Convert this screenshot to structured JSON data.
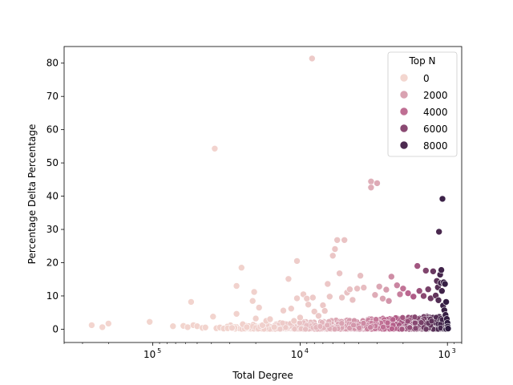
{
  "chart_data": {
    "type": "scatter",
    "title": "",
    "xlabel": "Total Degree",
    "ylabel": "Percentage Delta Percentage",
    "x_scale": "log",
    "x_reversed": true,
    "xlim": [
      800,
      400000
    ],
    "ylim": [
      -4,
      85
    ],
    "x_ticks": [
      {
        "value": 100000,
        "base": "10",
        "exp": "5"
      },
      {
        "value": 10000,
        "base": "10",
        "exp": "4"
      },
      {
        "value": 1000,
        "base": "10",
        "exp": "3"
      }
    ],
    "y_ticks": [
      0,
      10,
      20,
      30,
      40,
      50,
      60,
      70,
      80
    ],
    "grid": false,
    "legend": {
      "title": "Top N",
      "placement": "top-right",
      "entries": [
        {
          "label": "0",
          "value": 0
        },
        {
          "label": "2000",
          "value": 2000
        },
        {
          "label": "4000",
          "value": 4000
        },
        {
          "label": "6000",
          "value": 6000
        },
        {
          "label": "8000",
          "value": 8000
        }
      ]
    },
    "hue_range": [
      0,
      9000
    ],
    "palette_low": "#f3d6cf",
    "palette_high": "#2d1a3f",
    "points": [
      {
        "x": 260000,
        "y": 1.2,
        "n": 20
      },
      {
        "x": 220000,
        "y": 0.6,
        "n": 30
      },
      {
        "x": 200000,
        "y": 1.7,
        "n": 25
      },
      {
        "x": 105000,
        "y": 2.2,
        "n": 40
      },
      {
        "x": 73000,
        "y": 0.9,
        "n": 50
      },
      {
        "x": 62000,
        "y": 1.0,
        "n": 55
      },
      {
        "x": 58000,
        "y": 0.6,
        "n": 60
      },
      {
        "x": 55000,
        "y": 8.2,
        "n": 70
      },
      {
        "x": 53000,
        "y": 1.2,
        "n": 65
      },
      {
        "x": 50000,
        "y": 0.9,
        "n": 70
      },
      {
        "x": 46000,
        "y": 0.4,
        "n": 80
      },
      {
        "x": 44000,
        "y": 0.5,
        "n": 85
      },
      {
        "x": 38000,
        "y": 54.3,
        "n": 100
      },
      {
        "x": 39000,
        "y": 3.8,
        "n": 95
      },
      {
        "x": 37000,
        "y": 0.3,
        "n": 110
      },
      {
        "x": 35000,
        "y": 0.5,
        "n": 120
      },
      {
        "x": 33000,
        "y": 0.2,
        "n": 125
      },
      {
        "x": 31000,
        "y": 0.3,
        "n": 130
      },
      {
        "x": 29000,
        "y": 0.4,
        "n": 140
      },
      {
        "x": 27000,
        "y": 13.0,
        "n": 150
      },
      {
        "x": 27000,
        "y": 4.6,
        "n": 155
      },
      {
        "x": 25000,
        "y": 18.5,
        "n": 170
      },
      {
        "x": 24500,
        "y": 1.5,
        "n": 175
      },
      {
        "x": 23000,
        "y": 0.6,
        "n": 185
      },
      {
        "x": 21000,
        "y": 8.5,
        "n": 200
      },
      {
        "x": 20500,
        "y": 11.2,
        "n": 205
      },
      {
        "x": 20000,
        "y": 3.2,
        "n": 210
      },
      {
        "x": 19000,
        "y": 6.5,
        "n": 220
      },
      {
        "x": 18000,
        "y": 1.2,
        "n": 230
      },
      {
        "x": 17000,
        "y": 2.5,
        "n": 245
      },
      {
        "x": 16000,
        "y": 3.0,
        "n": 260
      },
      {
        "x": 15000,
        "y": 0.6,
        "n": 275
      },
      {
        "x": 13000,
        "y": 5.6,
        "n": 300
      },
      {
        "x": 12000,
        "y": 15.1,
        "n": 330
      },
      {
        "x": 11500,
        "y": 6.2,
        "n": 340
      },
      {
        "x": 11000,
        "y": 2.5,
        "n": 350
      },
      {
        "x": 10500,
        "y": 20.5,
        "n": 360
      },
      {
        "x": 10500,
        "y": 9.3,
        "n": 365
      },
      {
        "x": 10000,
        "y": 3.5,
        "n": 380
      },
      {
        "x": 9500,
        "y": 10.5,
        "n": 400
      },
      {
        "x": 9000,
        "y": 9.2,
        "n": 420
      },
      {
        "x": 8800,
        "y": 7.4,
        "n": 430
      },
      {
        "x": 8300,
        "y": 81.4,
        "n": 460
      },
      {
        "x": 8200,
        "y": 9.5,
        "n": 465
      },
      {
        "x": 8000,
        "y": 5.3,
        "n": 480
      },
      {
        "x": 7500,
        "y": 4.0,
        "n": 500
      },
      {
        "x": 7000,
        "y": 7.2,
        "n": 530
      },
      {
        "x": 6800,
        "y": 5.5,
        "n": 550
      },
      {
        "x": 6500,
        "y": 13.6,
        "n": 570
      },
      {
        "x": 6300,
        "y": 9.8,
        "n": 590
      },
      {
        "x": 6000,
        "y": 22.1,
        "n": 620
      },
      {
        "x": 5800,
        "y": 24.1,
        "n": 640
      },
      {
        "x": 5600,
        "y": 26.8,
        "n": 660
      },
      {
        "x": 5400,
        "y": 16.8,
        "n": 680
      },
      {
        "x": 5200,
        "y": 9.5,
        "n": 700
      },
      {
        "x": 5000,
        "y": 26.8,
        "n": 720
      },
      {
        "x": 4800,
        "y": 11.0,
        "n": 760
      },
      {
        "x": 4600,
        "y": 12.0,
        "n": 790
      },
      {
        "x": 4400,
        "y": 8.8,
        "n": 820
      },
      {
        "x": 4100,
        "y": 12.2,
        "n": 870
      },
      {
        "x": 3900,
        "y": 16.1,
        "n": 900
      },
      {
        "x": 3700,
        "y": 12.5,
        "n": 950
      },
      {
        "x": 3300,
        "y": 44.4,
        "n": 1500
      },
      {
        "x": 3300,
        "y": 42.6,
        "n": 1550
      },
      {
        "x": 3100,
        "y": 10.3,
        "n": 1600
      },
      {
        "x": 3000,
        "y": 43.9,
        "n": 1700
      },
      {
        "x": 2900,
        "y": 12.8,
        "n": 1800
      },
      {
        "x": 2750,
        "y": 9.2,
        "n": 1900
      },
      {
        "x": 2600,
        "y": 11.9,
        "n": 2200
      },
      {
        "x": 2500,
        "y": 8.5,
        "n": 2500
      },
      {
        "x": 2400,
        "y": 15.8,
        "n": 2800
      },
      {
        "x": 2200,
        "y": 13.2,
        "n": 3100
      },
      {
        "x": 2100,
        "y": 10.5,
        "n": 3400
      },
      {
        "x": 2000,
        "y": 12.2,
        "n": 3800
      },
      {
        "x": 1850,
        "y": 10.8,
        "n": 4300
      },
      {
        "x": 1700,
        "y": 9.8,
        "n": 4800
      },
      {
        "x": 1600,
        "y": 19.0,
        "n": 5200
      },
      {
        "x": 1550,
        "y": 11.5,
        "n": 5500
      },
      {
        "x": 1450,
        "y": 10.0,
        "n": 6000
      },
      {
        "x": 1400,
        "y": 17.6,
        "n": 6300
      },
      {
        "x": 1350,
        "y": 12.0,
        "n": 6600
      },
      {
        "x": 1300,
        "y": 9.3,
        "n": 6900
      },
      {
        "x": 1250,
        "y": 17.4,
        "n": 7100
      },
      {
        "x": 1200,
        "y": 10.1,
        "n": 7300
      },
      {
        "x": 1180,
        "y": 14.5,
        "n": 7500
      },
      {
        "x": 1160,
        "y": 12.6,
        "n": 7700
      },
      {
        "x": 1150,
        "y": 8.7,
        "n": 7800
      },
      {
        "x": 1140,
        "y": 29.3,
        "n": 8100
      },
      {
        "x": 1120,
        "y": 16.4,
        "n": 8200
      },
      {
        "x": 1110,
        "y": 13.9,
        "n": 8300
      },
      {
        "x": 1100,
        "y": 17.8,
        "n": 8350
      },
      {
        "x": 1090,
        "y": 11.5,
        "n": 8400
      },
      {
        "x": 1080,
        "y": 39.2,
        "n": 8500
      },
      {
        "x": 1070,
        "y": 7.1,
        "n": 8550
      },
      {
        "x": 1060,
        "y": 14.1,
        "n": 8600
      },
      {
        "x": 1050,
        "y": 5.7,
        "n": 8650
      },
      {
        "x": 1040,
        "y": 13.6,
        "n": 8700
      },
      {
        "x": 1030,
        "y": 4.3,
        "n": 8750
      },
      {
        "x": 1020,
        "y": 8.2,
        "n": 8800
      },
      {
        "x": 1010,
        "y": 3.1,
        "n": 8850
      },
      {
        "x": 1000,
        "y": 1.9,
        "n": 8900
      },
      {
        "x": 995,
        "y": 0.8,
        "n": 8950
      },
      {
        "x": 990,
        "y": 0.2,
        "n": 8980
      }
    ],
    "dense_band": {
      "x_from": 35000,
      "x_to": 1000,
      "y_max": 3,
      "n_from": 120,
      "n_to": 8900
    }
  }
}
